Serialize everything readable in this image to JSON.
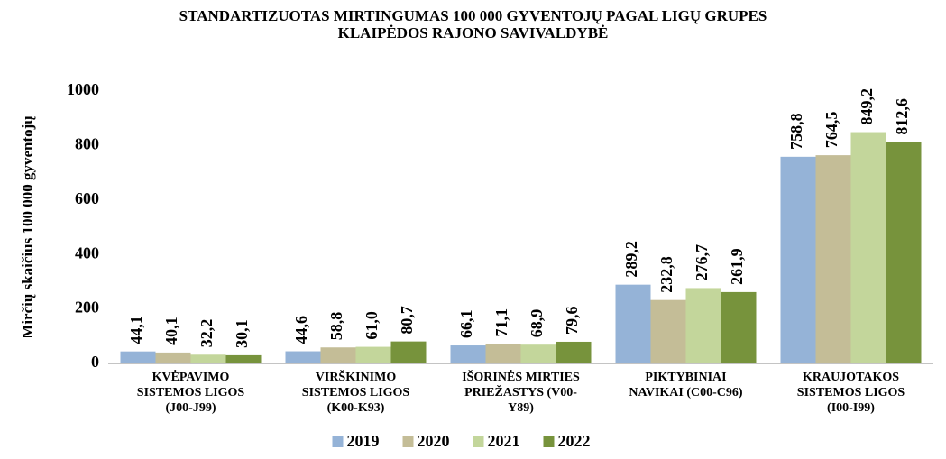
{
  "chart_data": {
    "type": "bar",
    "title": "STANDARTIZUOTAS  MIRTINGUMAS  100 000 GYVENTOJŲ PAGAL LIGŲ GRUPES\nKLAIPĖDOS RAJONO SAVIVALDYBĖ",
    "y_label": "Mirčių  skaičius 100 000 gyventojų",
    "categories": [
      "KVĖPAVIMO\nSISTEMOS LIGOS\n(J00-J99)",
      "VIRŠKINIMO\nSISTEMOS LIGOS\n(K00-K93)",
      "IŠORINĖS  MIRTIES\nPRIEŽASTYS  (V00-\nY89)",
      "PIKTYBINIAI\nNAVIKAI  (C00-C96)",
      "KRAUJOTAKOS\nSISTEMOS LIGOS\n(I00-I99)"
    ],
    "series": [
      {
        "name": "2019",
        "color": "#95b3d7",
        "values": [
          44.1,
          44.6,
          66.1,
          289.2,
          758.8
        ],
        "value_labels": [
          "44,1",
          "44,6",
          "66,1",
          "289,2",
          "758,8"
        ]
      },
      {
        "name": "2020",
        "color": "#c4bd97",
        "values": [
          40.1,
          58.8,
          71.1,
          232.8,
          764.5
        ],
        "value_labels": [
          "40,1",
          "58,8",
          "71,1",
          "232,8",
          "764,5"
        ]
      },
      {
        "name": "2021",
        "color": "#c3d69b",
        "values": [
          32.2,
          61.0,
          68.9,
          276.7,
          849.2
        ],
        "value_labels": [
          "32,2",
          "61,0",
          "68,9",
          "276,7",
          "849,2"
        ]
      },
      {
        "name": "2022",
        "color": "#77933c",
        "values": [
          30.1,
          80.7,
          79.6,
          261.9,
          812.6
        ],
        "value_labels": [
          "30,1",
          "80,7",
          "79,6",
          "261,9",
          "812,6"
        ]
      }
    ],
    "ylim": [
      0,
      1000
    ],
    "yticks": [
      0,
      200,
      400,
      600,
      800,
      1000
    ],
    "grid": false,
    "legend": "bottom"
  }
}
